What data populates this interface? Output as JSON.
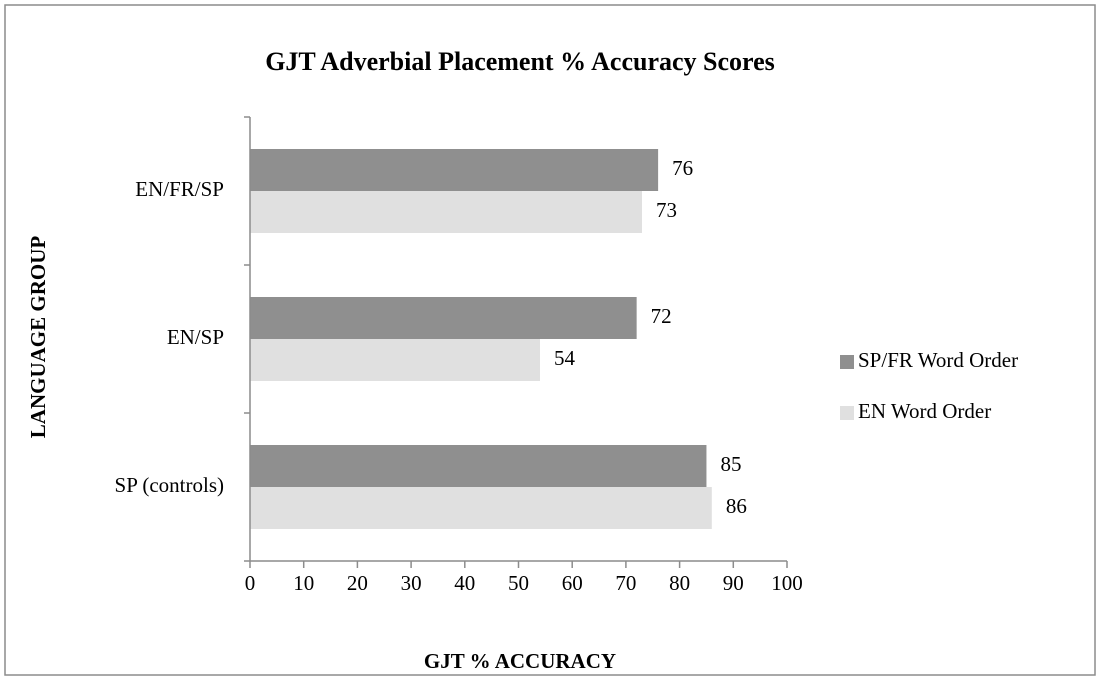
{
  "chart_data": {
    "type": "hbar",
    "title": "GJT Adverbial Placement % Accuracy Scores",
    "x_label": "GJT % ACCURACY",
    "y_label": "LANGUAGE GROUP",
    "categories": [
      "EN/FR/SP",
      "EN/SP",
      "SP (controls)"
    ],
    "series": [
      {
        "name": "SP/FR Word Order",
        "color": "#8f8f8f",
        "values": [
          76,
          72,
          85
        ]
      },
      {
        "name": "EN Word Order",
        "color": "#e0e0e0",
        "values": [
          73,
          54,
          86
        ]
      }
    ],
    "xlim": [
      0,
      100
    ],
    "xticks": [
      0,
      10,
      20,
      30,
      40,
      50,
      60,
      70,
      80,
      90,
      100
    ],
    "grid": false,
    "legend": "right"
  }
}
